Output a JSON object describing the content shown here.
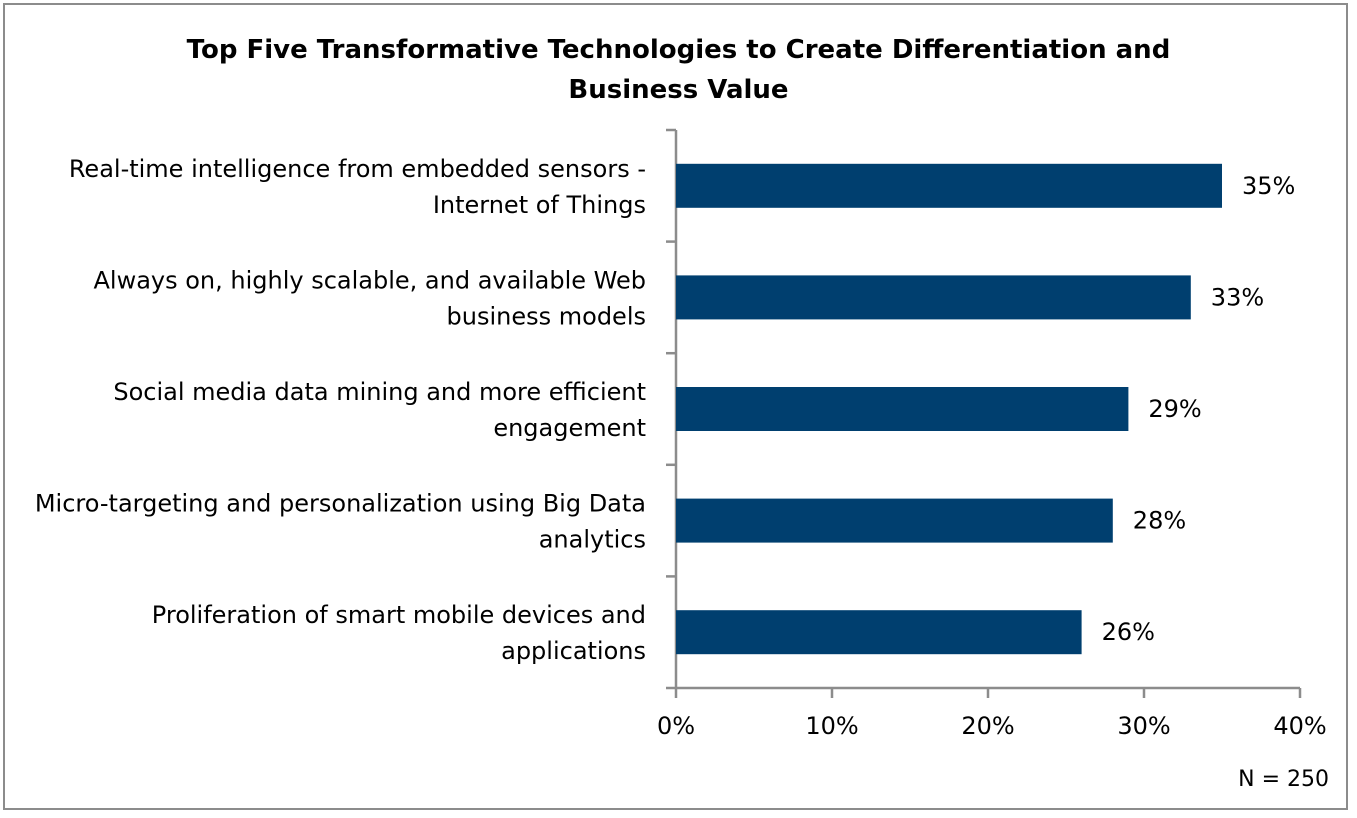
{
  "chart_data": {
    "type": "bar",
    "orientation": "horizontal",
    "title": "Top Five Transformative Technologies to Create Differentiation and Business Value",
    "title_lines": [
      "Top Five Transformative Technologies to Create Differentiation and",
      "Business Value"
    ],
    "categories": [
      [
        "Real-time intelligence from embedded sensors -",
        "Internet of Things"
      ],
      [
        "Always on, highly scalable, and available Web",
        "business models"
      ],
      [
        "Social media data mining and more efficient",
        "engagement"
      ],
      [
        "Micro-targeting and personalization using Big Data",
        "analytics"
      ],
      [
        "Proliferation of smart mobile devices and",
        "applications"
      ]
    ],
    "values": [
      35,
      33,
      29,
      28,
      26
    ],
    "data_labels": [
      "35%",
      "33%",
      "29%",
      "28%",
      "26%"
    ],
    "xlim": [
      0,
      40
    ],
    "xticks": [
      0,
      10,
      20,
      30,
      40
    ],
    "xtick_labels": [
      "0%",
      "10%",
      "20%",
      "30%",
      "40%"
    ],
    "xlabel": "",
    "ylabel": "",
    "grid": false,
    "bar_color": "#003f6f",
    "note": "N = 250"
  }
}
